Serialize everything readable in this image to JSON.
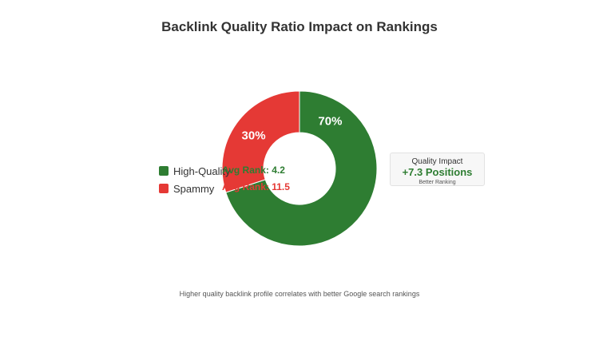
{
  "chart_data": {
    "type": "pie",
    "title": "Backlink Quality Ratio Impact on Rankings",
    "slices": [
      {
        "name": "High-Quality",
        "value": 70,
        "label": "70%",
        "color": "#2e7d32",
        "avg_rank": "Avg Rank: 4.2"
      },
      {
        "name": "Spammy",
        "value": 30,
        "label": "30%",
        "color": "#e53935",
        "avg_rank": "Avg Rank: 11.5"
      }
    ],
    "legend_placement": "left"
  },
  "impact": {
    "title": "Quality Impact",
    "value": "+7.3 Positions",
    "subtitle": "Better Ranking",
    "value_color": "#2e7d32"
  },
  "footnote": "Higher quality backlink profile correlates with better Google search rankings"
}
